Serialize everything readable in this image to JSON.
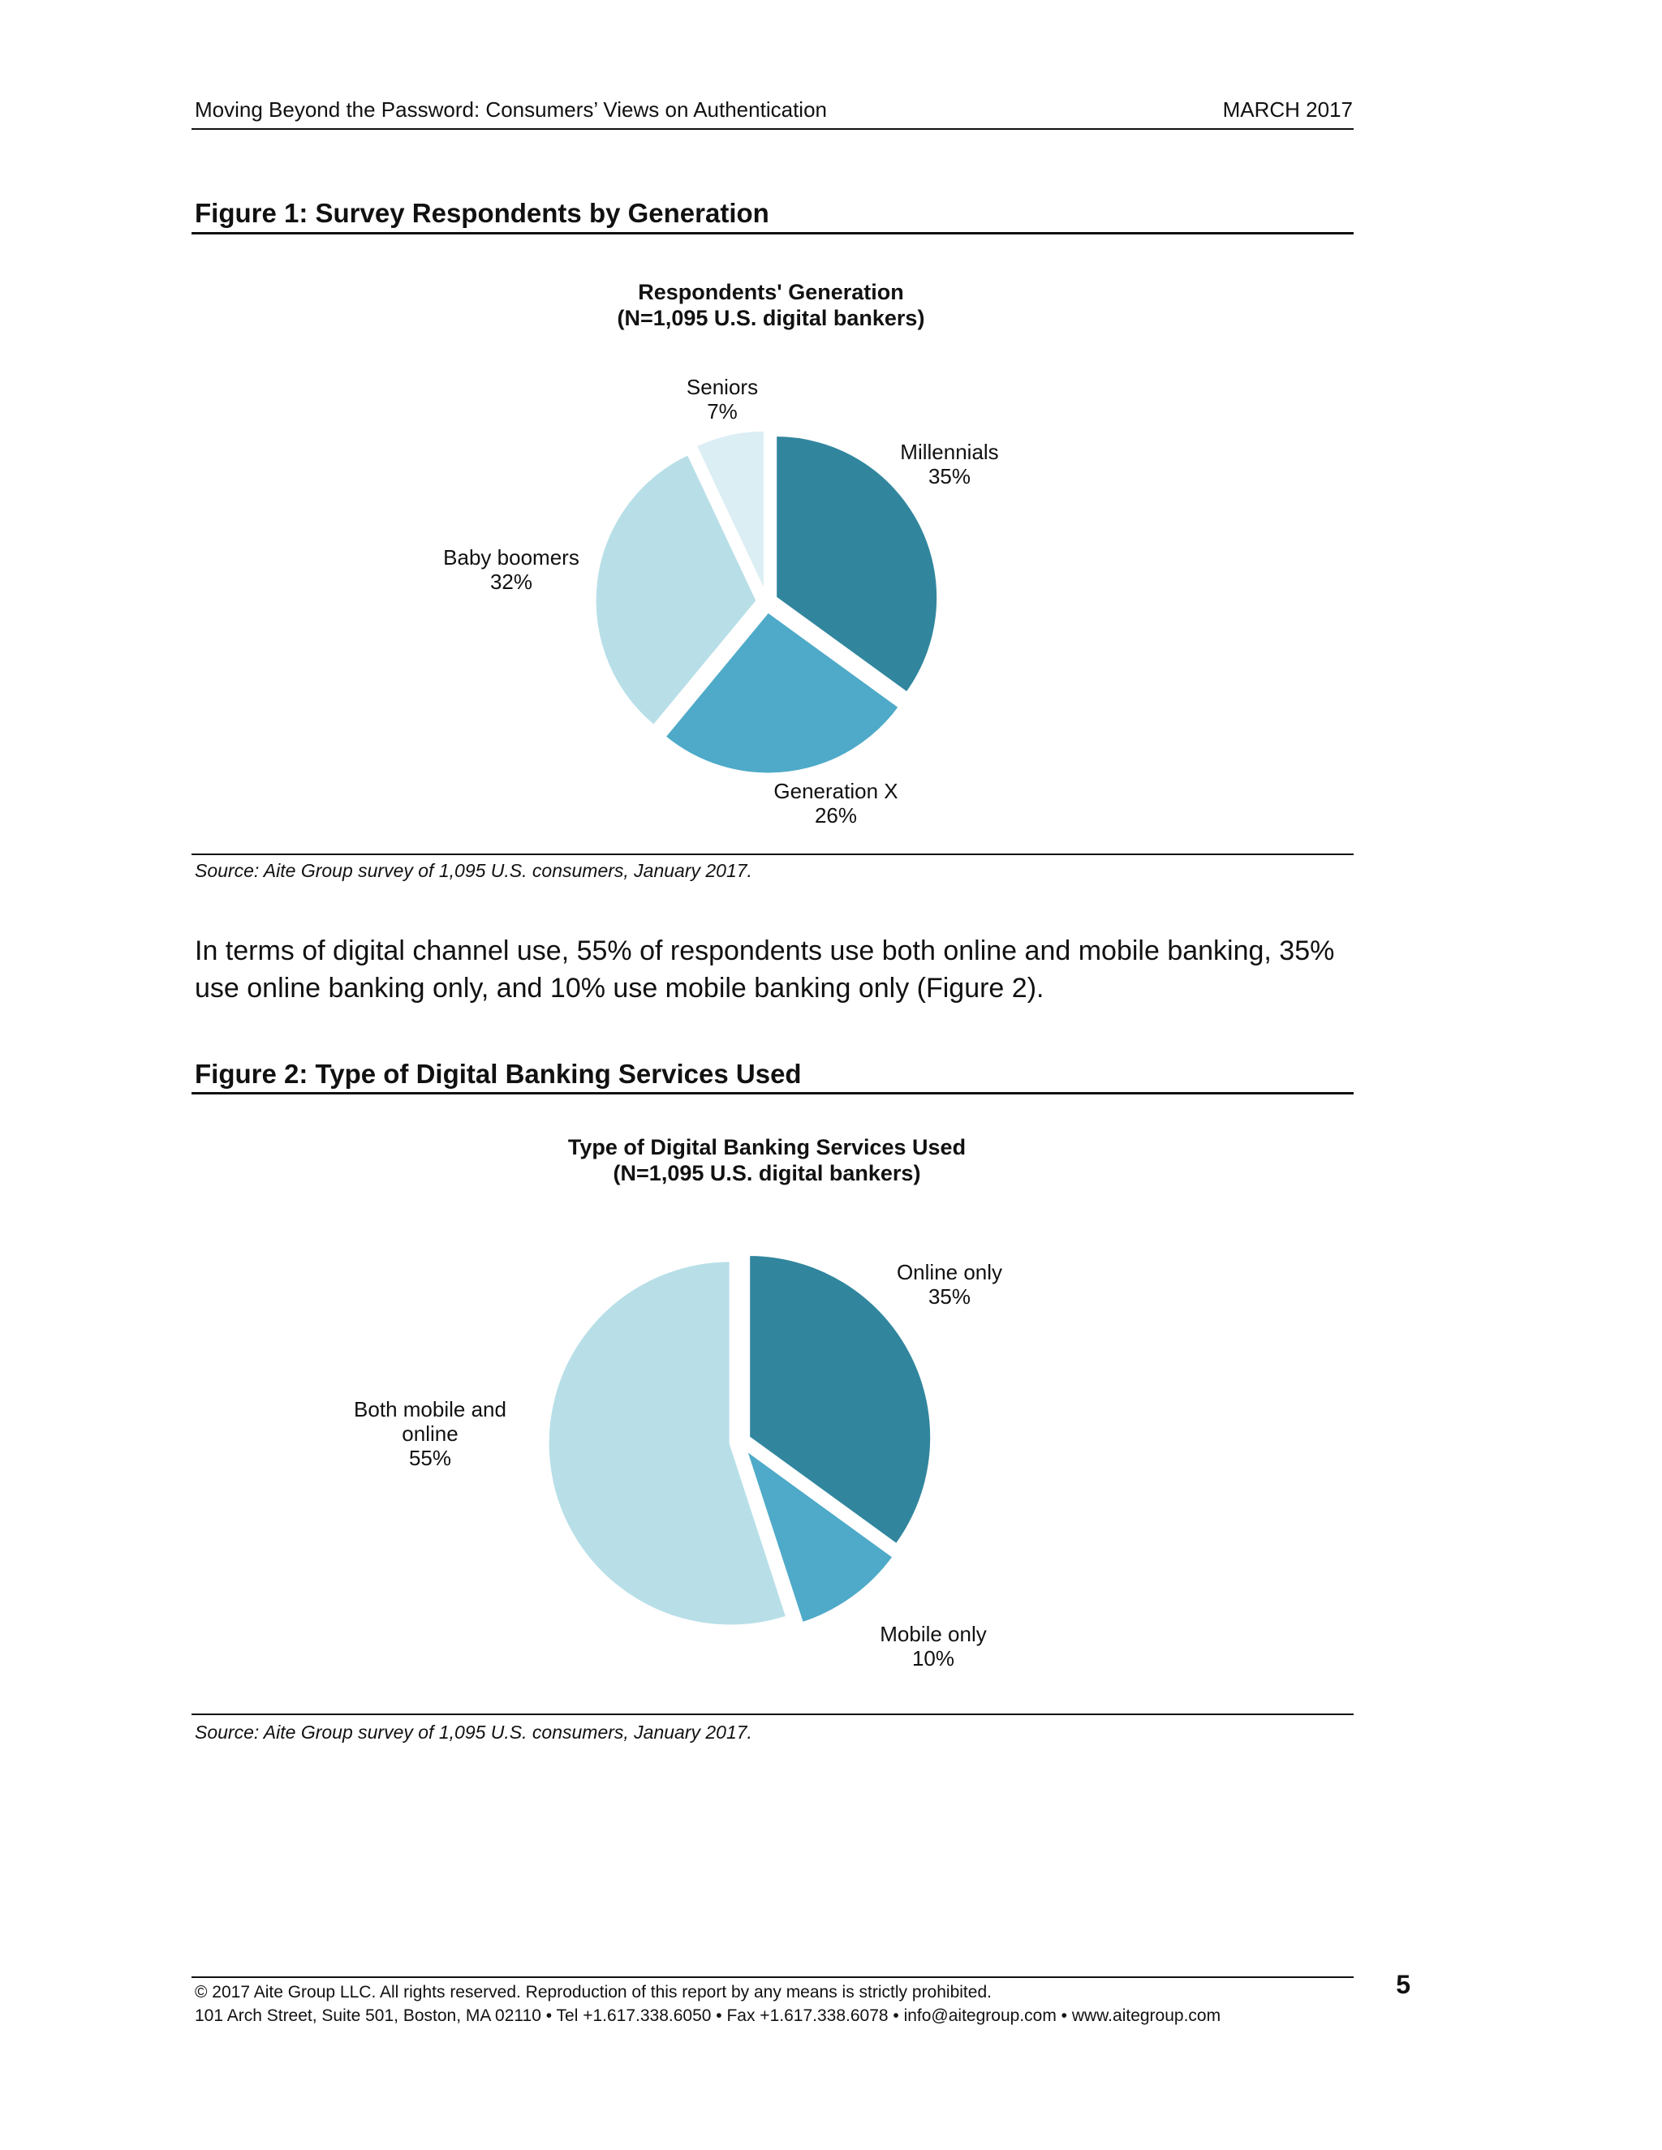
{
  "header": {
    "left": "Moving Beyond the Password: Consumers’ Views on Authentication",
    "right": "MARCH 2017"
  },
  "figure1": {
    "heading": "Figure 1: Survey Respondents by Generation",
    "source": "Source: Aite Group survey of 1,095 U.S. consumers, January 2017."
  },
  "paragraph": "In terms of digital channel use, 55% of respondents use both online and mobile banking, 35% use online banking only, and 10% use mobile banking only (Figure 2).",
  "figure2": {
    "heading": "Figure 2: Type of Digital Banking Services Used",
    "source": "Source: Aite Group survey of 1,095 U.S. consumers, January 2017."
  },
  "chart_data": [
    {
      "type": "pie",
      "title": "Respondents' Generation",
      "subtitle": "(N=1,095 U.S. digital bankers)",
      "categories": [
        "Millennials",
        "Generation X",
        "Baby boomers",
        "Seniors"
      ],
      "values": [
        35,
        26,
        32,
        7
      ],
      "value_labels": [
        "35%",
        "26%",
        "32%",
        "7%"
      ],
      "colors": [
        "#31869e",
        "#4eaac8",
        "#b8dfe8",
        "#dbeef3"
      ],
      "exploded": true,
      "legend": "none"
    },
    {
      "type": "pie",
      "title": "Type of Digital Banking Services Used",
      "subtitle": "(N=1,095 U.S. digital bankers)",
      "categories": [
        "Online only",
        "Mobile only",
        "Both mobile and online"
      ],
      "values": [
        35,
        10,
        55
      ],
      "value_labels": [
        "35%",
        "10%",
        "55%"
      ],
      "colors": [
        "#31869e",
        "#4eaac8",
        "#b8dfe8"
      ],
      "exploded": true,
      "legend": "none"
    }
  ],
  "footer": {
    "copyright": "© 2017 Aite Group LLC. All rights reserved. Reproduction of this report by any means is strictly prohibited.",
    "address": "101 Arch Street, Suite 501, Boston, MA 02110 • Tel +1.617.338.6050 • Fax +1.617.338.6078 • info@aitegroup.com • www.aitegroup.com",
    "page_number": "5"
  }
}
